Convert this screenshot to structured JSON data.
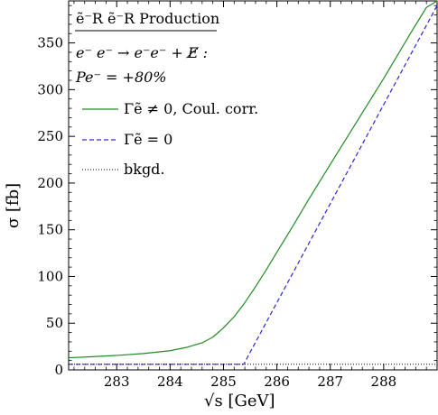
{
  "chart_data": {
    "type": "line",
    "title": "ẽ⁻R ẽ⁻R Production",
    "annotations": [
      "e⁻ e⁻ → e⁻e⁻ + E̸ :",
      "Pe⁻ = +80%"
    ],
    "xlabel": "√s [GeV]",
    "ylabel": "σ [fb]",
    "xlim": [
      282.1,
      289.0
    ],
    "ylim": [
      0,
      395
    ],
    "xticks": [
      283,
      284,
      285,
      286,
      287,
      288
    ],
    "yticks": [
      0,
      50,
      100,
      150,
      200,
      250,
      300,
      350
    ],
    "grid": false,
    "legend_placement": "top-left",
    "series": [
      {
        "name": "Γẽ ≠ 0, Coul. corr.",
        "style": "solid",
        "color": "#228b22",
        "x": [
          282.1,
          282.5,
          283.0,
          283.5,
          284.0,
          284.3,
          284.6,
          284.8,
          285.0,
          285.2,
          285.4,
          285.6,
          285.8,
          286.0,
          286.3,
          286.6,
          287.0,
          287.5,
          288.0,
          288.5,
          288.8,
          289.0
        ],
        "y": [
          13,
          14,
          15.5,
          17.5,
          20.5,
          24,
          29,
          35,
          45,
          57,
          72,
          89,
          107,
          126,
          154,
          183,
          220,
          266,
          312,
          360,
          388,
          406
        ]
      },
      {
        "name": "Γẽ = 0",
        "style": "dashed",
        "color": "#2a2ad4",
        "x": [
          282.1,
          283.0,
          284.0,
          285.0,
          285.38,
          285.5,
          286.0,
          286.5,
          287.0,
          287.5,
          288.0,
          288.5,
          289.0
        ],
        "y": [
          6,
          6,
          6,
          6,
          6,
          19,
          72,
          125,
          178,
          231,
          284,
          337,
          390
        ]
      },
      {
        "name": "bkgd.",
        "style": "dotted",
        "color": "#000000",
        "x": [
          282.1,
          289.0
        ],
        "y": [
          6,
          6
        ]
      }
    ]
  }
}
